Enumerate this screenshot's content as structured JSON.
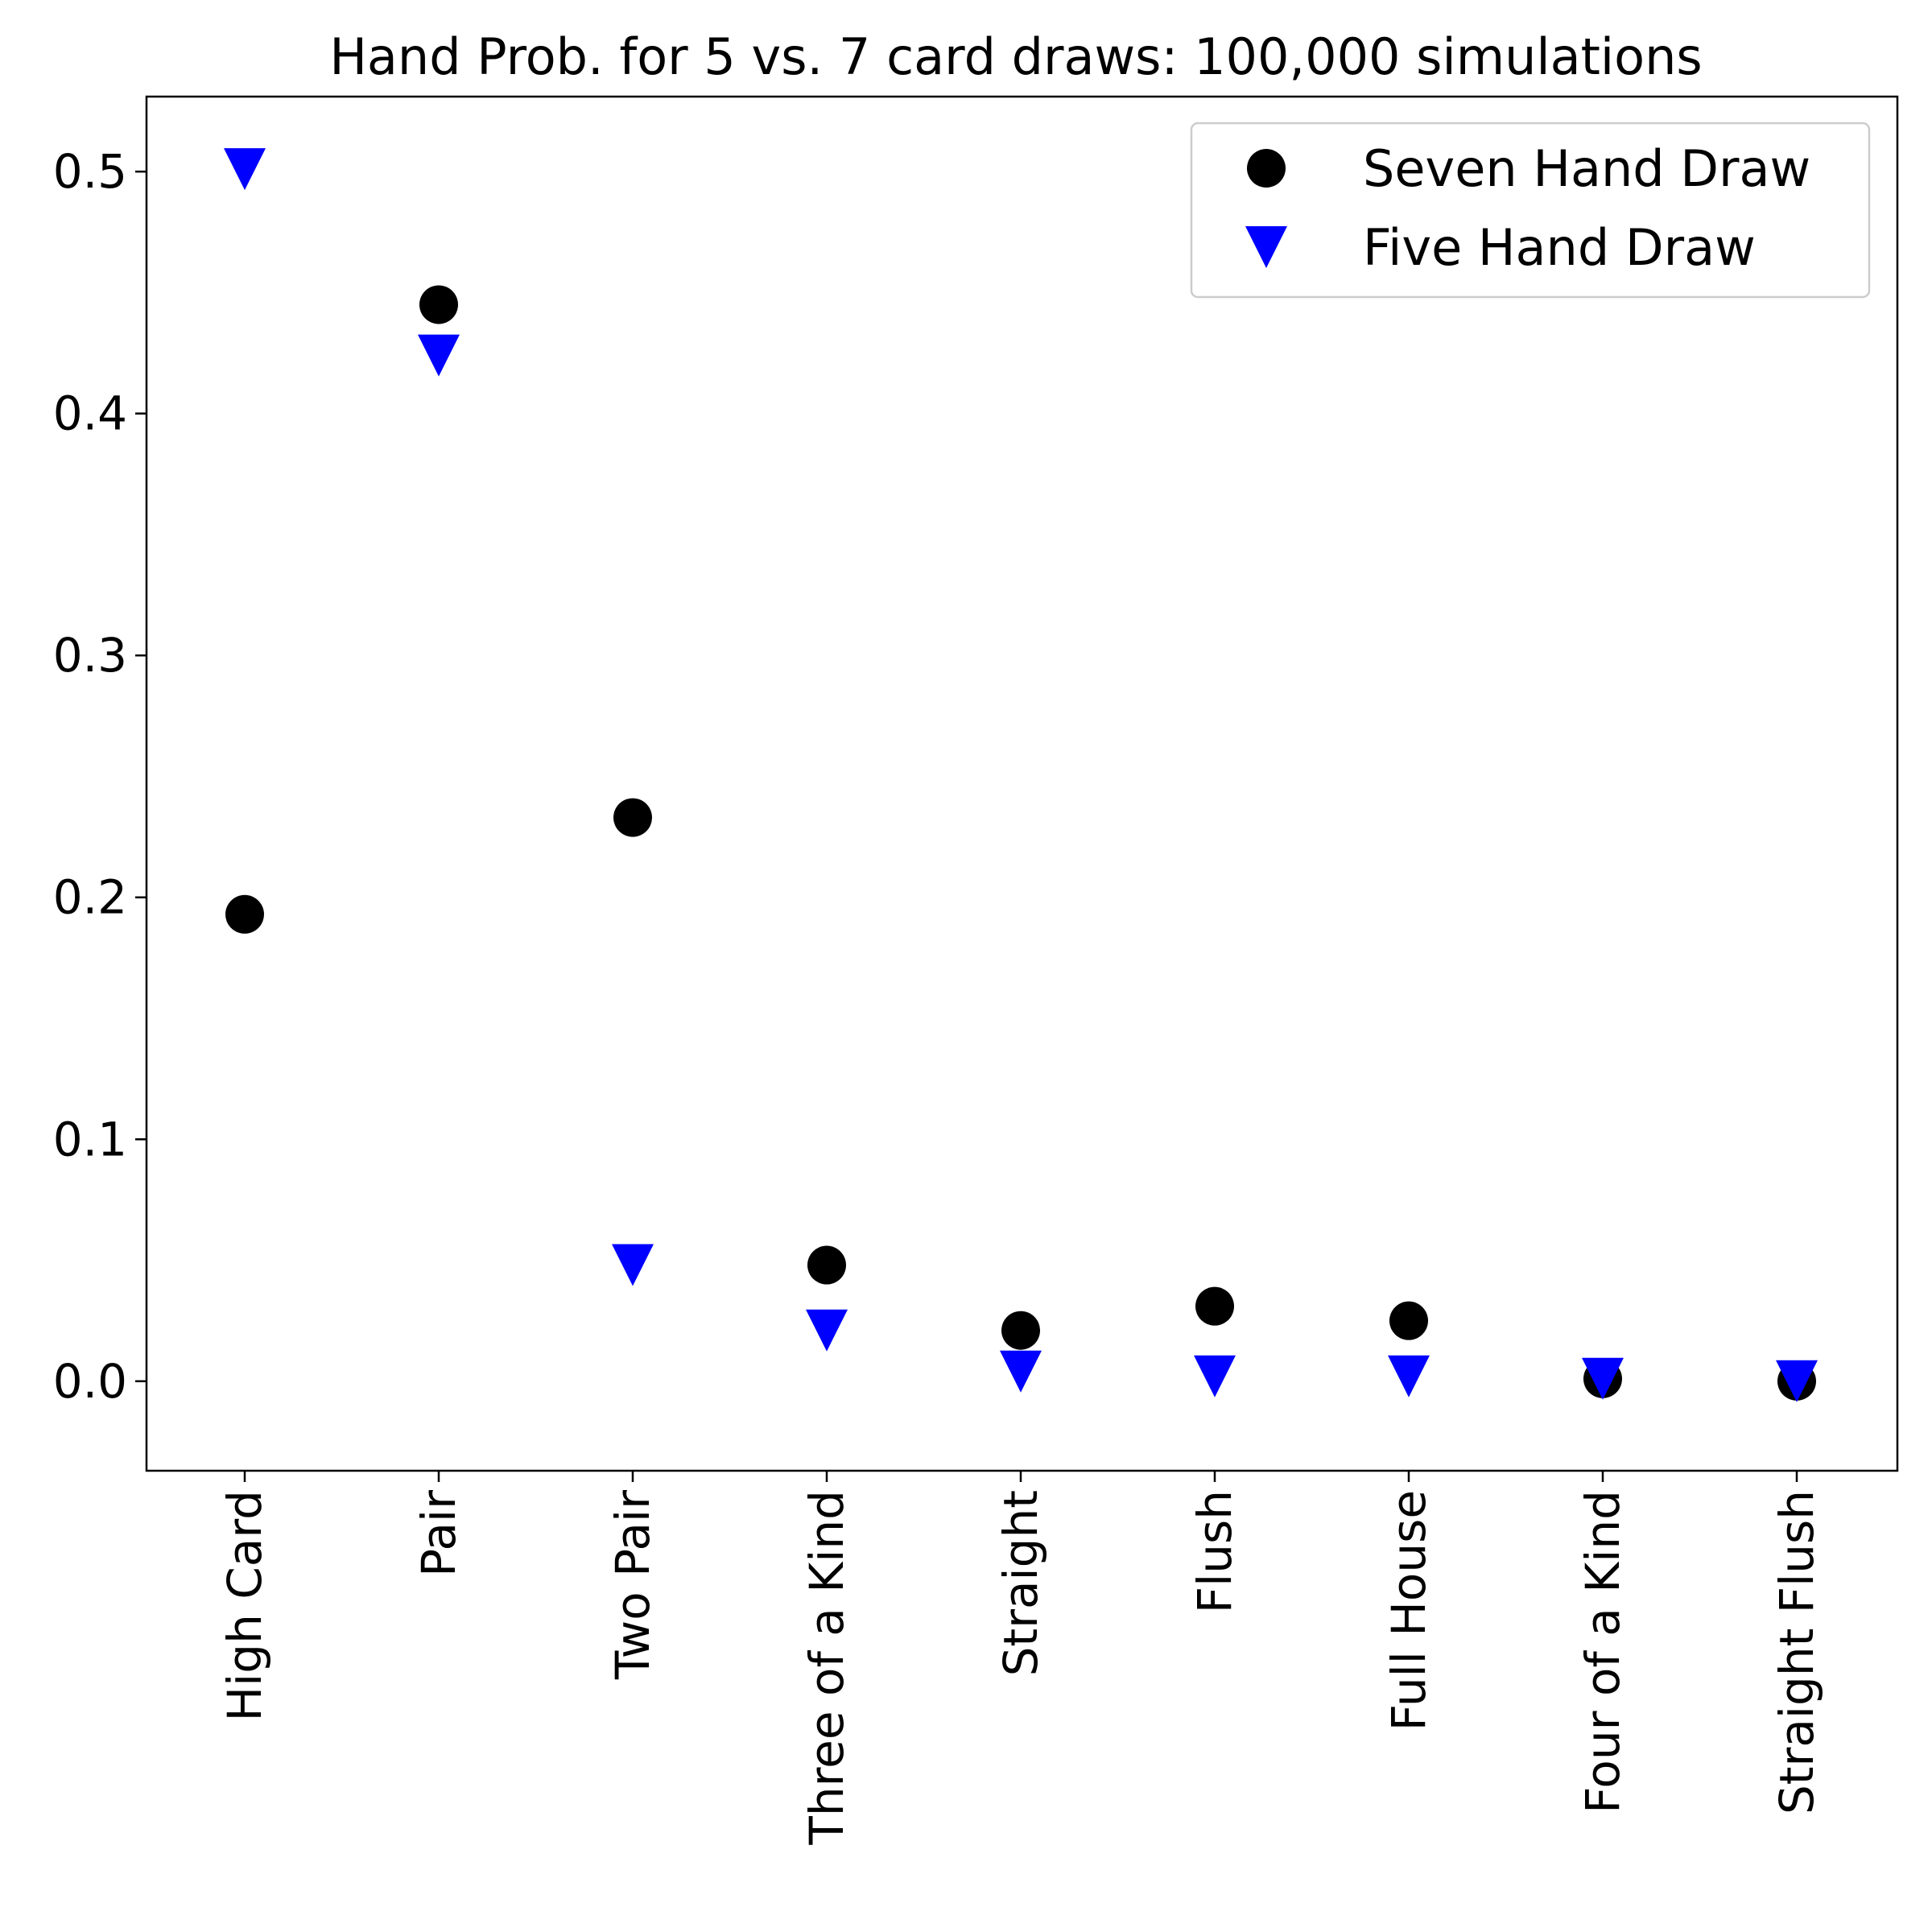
{
  "chart_data": {
    "type": "scatter",
    "title": "Hand Prob. for 5 vs. 7 card draws: 100,000 simulations",
    "xlabel": "",
    "ylabel": "",
    "categories": [
      "High Card",
      "Pair",
      "Two Pair",
      "Three of a Kind",
      "Straight",
      "Flush",
      "Full House",
      "Four of a Kind",
      "Straight Flush"
    ],
    "series": [
      {
        "name": "Seven Hand Draw",
        "marker": "circle",
        "color": "#000000",
        "values": [
          0.193,
          0.445,
          0.233,
          0.048,
          0.021,
          0.031,
          0.025,
          0.001,
          0.0
        ]
      },
      {
        "name": "Five Hand Draw",
        "marker": "triangle-down",
        "color": "#0000ff",
        "values": [
          0.501,
          0.424,
          0.048,
          0.021,
          0.004,
          0.002,
          0.002,
          0.001,
          0.0
        ]
      }
    ],
    "ylim": [
      -0.037,
      0.531
    ],
    "yticks": [
      "0.0",
      "0.1",
      "0.2",
      "0.3",
      "0.4",
      "0.5"
    ],
    "grid": false,
    "legend_position": "top-right"
  }
}
